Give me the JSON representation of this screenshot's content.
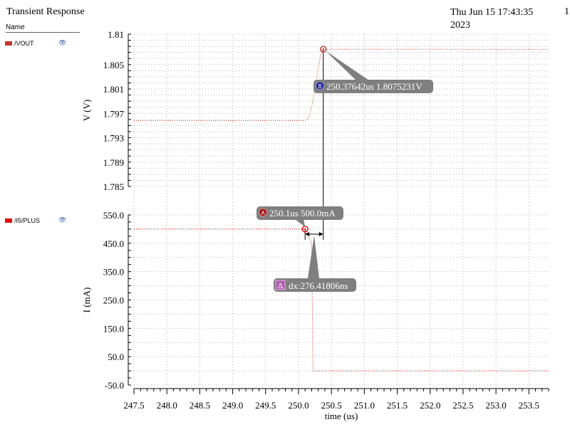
{
  "window": {
    "title": "Transient Response",
    "date": "Thu Jun 15 17:43:35 2023",
    "page": "1"
  },
  "legend": {
    "header": "Name",
    "items": [
      {
        "label": "/VOUT",
        "color": "#c0392b"
      },
      {
        "label": "/I5/PLUS",
        "color": "#e01010"
      }
    ]
  },
  "chart_data": [
    {
      "type": "line",
      "ylabel": "V (V)",
      "ylim": [
        1.785,
        1.81
      ],
      "yticks": [
        "1.81",
        "1.805",
        "1.801",
        "1.797",
        "1.793",
        "1.789",
        "1.785"
      ],
      "ytick_values": [
        1.81,
        1.805,
        1.801,
        1.797,
        1.793,
        1.789,
        1.785
      ],
      "series": [
        {
          "name": "/VOUT",
          "color": "#c0392b",
          "x": [
            247.5,
            250.1,
            250.15,
            250.2,
            250.25,
            250.3,
            250.34,
            250.37642,
            253.8
          ],
          "y": [
            1.7958,
            1.7958,
            1.7962,
            1.798,
            1.801,
            1.8045,
            1.8068,
            1.8075231,
            1.8075
          ]
        }
      ],
      "marker": {
        "id": "B",
        "label": "250.37642us 1.8075231V",
        "x": 250.37642,
        "y": 1.8075231
      }
    },
    {
      "type": "line",
      "xlabel": "time (us)",
      "ylabel": "I (mA)",
      "xlim": [
        247.5,
        253.8
      ],
      "ylim": [
        -50.0,
        550.0
      ],
      "xticks": [
        "247.5",
        "248.0",
        "248.5",
        "249.0",
        "249.5",
        "250.0",
        "250.5",
        "251.0",
        "251.5",
        "252.0",
        "252.5",
        "253.0",
        "253.5"
      ],
      "xtick_values": [
        247.5,
        248.0,
        248.5,
        249.0,
        249.5,
        250.0,
        250.5,
        251.0,
        251.5,
        252.0,
        252.5,
        253.0,
        253.5
      ],
      "yticks": [
        "550.0",
        "450.0",
        "350.0",
        "250.0",
        "150.0",
        "50.0",
        "-50.0"
      ],
      "ytick_values": [
        550.0,
        450.0,
        350.0,
        250.0,
        150.0,
        50.0,
        -50.0
      ],
      "series": [
        {
          "name": "/I5/PLUS",
          "color": "#e01010",
          "x": [
            247.5,
            250.1,
            250.2,
            250.22,
            253.8
          ],
          "y": [
            500.0,
            500.0,
            450.0,
            0.0,
            0.0
          ]
        }
      ],
      "marker": {
        "id": "A",
        "label": "250.1us 500.0mA",
        "x": 250.1,
        "y": 500.0
      },
      "delta": {
        "symbol": "Δ",
        "label": "dx:276.41806ns"
      }
    }
  ]
}
